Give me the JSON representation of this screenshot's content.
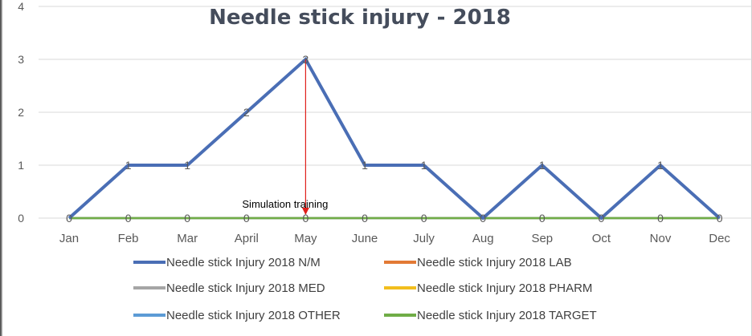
{
  "chart_data": {
    "type": "line",
    "title": "Needle stick injury - 2018",
    "categories": [
      "Jan",
      "Feb",
      "Mar",
      "April",
      "May",
      "June",
      "July",
      "Aug",
      "Sep",
      "Oct",
      "Nov",
      "Dec"
    ],
    "ylim": [
      0,
      4
    ],
    "yticks": [
      "0",
      "1",
      "2",
      "3",
      "4"
    ],
    "grid": true,
    "legend_position": "bottom",
    "series": [
      {
        "name": "Needle stick Injury 2018 N/M",
        "color": "#4A6EB5",
        "values": [
          0,
          1,
          1,
          2,
          3,
          1,
          1,
          0,
          1,
          0,
          1,
          0
        ]
      },
      {
        "name": "Needle stick Injury 2018 LAB",
        "color": "#E37A35",
        "values": [
          0,
          0,
          0,
          0,
          0,
          0,
          0,
          0,
          0,
          0,
          0,
          0
        ]
      },
      {
        "name": "Needle stick Injury 2018 MED",
        "color": "#A5A5A5",
        "values": [
          0,
          0,
          0,
          0,
          0,
          0,
          0,
          0,
          0,
          0,
          0,
          0
        ]
      },
      {
        "name": "Needle stick Injury 2018 PHARM",
        "color": "#F2BE1D",
        "values": [
          0,
          0,
          0,
          0,
          0,
          0,
          0,
          0,
          0,
          0,
          0,
          0
        ]
      },
      {
        "name": "Needle stick Injury 2018 OTHER",
        "color": "#5C9BD5",
        "values": [
          0,
          0,
          0,
          0,
          0,
          0,
          0,
          0,
          0,
          0,
          0,
          0
        ]
      },
      {
        "name": "Needle stick Injury 2018 TARGET",
        "color": "#70AD47",
        "values": [
          0,
          0,
          0,
          0,
          0,
          0,
          0,
          0,
          0,
          0,
          0,
          0
        ]
      }
    ],
    "data_labels": [
      "0",
      "1",
      "1",
      "2",
      "3",
      "1",
      "1",
      "0",
      "1",
      "0",
      "1",
      "0"
    ],
    "annotation": {
      "text": "Simulation training",
      "category": "May",
      "color": "#E0201B"
    }
  }
}
